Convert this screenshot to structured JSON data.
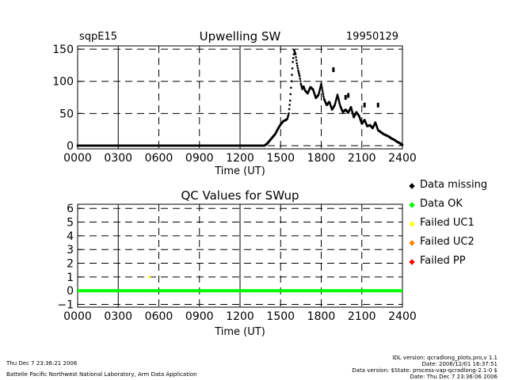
{
  "charts": {
    "top": {
      "site": "sqpE15",
      "title": "Upwelling SW",
      "date": "19950129",
      "xlabel": "Time (UT)"
    },
    "bottom": {
      "title": "QC Values for SWup",
      "xlabel": "Time (UT)"
    }
  },
  "legend": [
    {
      "label": "Data missing",
      "color": "#000000"
    },
    {
      "label": "Data OK",
      "color": "#00ff00"
    },
    {
      "label": "Failed UC1",
      "color": "#ffff00"
    },
    {
      "label": "Failed UC2",
      "color": "#ff8000"
    },
    {
      "label": "Failed PP",
      "color": "#ff0000"
    }
  ],
  "footer": {
    "timestamp": "Thu Dec  7 23:36:21 2006",
    "org": "Battelle Pacific Northwest National Laboratory, Arm Data Application",
    "idl": "IDL version: qcradlong_plots.pro,v 1.1",
    "date": "Date: 2006/12/01 16:37:51",
    "data_version": "Data version: $State: process-vap-qcradlong-2.1-0 $",
    "date2": "Date: Thu Dec  7 23:36:06 2006"
  },
  "chart_data": [
    {
      "type": "scatter",
      "title": "Upwelling SW",
      "xlabel": "Time (UT)",
      "ylabel": "",
      "xlim": [
        0,
        2400
      ],
      "ylim": [
        -5,
        155
      ],
      "x_ticks": [
        "0000",
        "0300",
        "0600",
        "0900",
        "1200",
        "1500",
        "1800",
        "2100",
        "2400"
      ],
      "y_ticks": [
        0,
        50,
        100,
        150
      ],
      "series": [
        {
          "name": "Upwelling SW",
          "color": "#000000",
          "x": [
            0,
            1380,
            1400,
            1420,
            1440,
            1460,
            1480,
            1500,
            1520,
            1540,
            1550,
            1560,
            1570,
            1580,
            1590,
            1600,
            1610,
            1620,
            1630,
            1640,
            1650,
            1660,
            1670,
            1680,
            1700,
            1720,
            1740,
            1760,
            1780,
            1800,
            1820,
            1840,
            1860,
            1880,
            1900,
            1920,
            1940,
            1960,
            1980,
            2000,
            2020,
            2040,
            2060,
            2080,
            2100,
            2120,
            2140,
            2160,
            2180,
            2200,
            2220,
            2240,
            2260,
            2280,
            2300,
            2320,
            2340,
            2360,
            2380,
            2400
          ],
          "y": [
            0,
            0,
            3,
            8,
            13,
            18,
            26,
            33,
            38,
            40,
            42,
            50,
            70,
            100,
            130,
            148,
            142,
            128,
            117,
            108,
            96,
            88,
            92,
            86,
            81,
            91,
            87,
            74,
            79,
            96,
            73,
            63,
            68,
            56,
            63,
            79,
            62,
            52,
            56,
            51,
            60,
            44,
            52,
            46,
            34,
            40,
            30,
            32,
            27,
            36,
            24,
            21,
            18,
            16,
            14,
            11,
            9,
            6,
            4,
            1
          ]
        },
        {
          "name": "Upwelling SW (outliers)",
          "color": "#000000",
          "x": [
            1890,
            1980,
            2000,
            2120,
            2220
          ],
          "y": [
            118,
            75,
            78,
            63,
            63
          ]
        }
      ]
    },
    {
      "type": "line",
      "title": "QC Values for SWup",
      "xlabel": "Time (UT)",
      "ylabel": "",
      "xlim": [
        0,
        2400
      ],
      "ylim": [
        -1.2,
        6.3
      ],
      "x_ticks": [
        "0000",
        "0300",
        "0600",
        "0900",
        "1200",
        "1500",
        "1800",
        "2100",
        "2400"
      ],
      "y_ticks": [
        -1,
        0,
        1,
        2,
        3,
        4,
        5,
        6
      ],
      "series": [
        {
          "name": "Data OK",
          "color": "#00ff00",
          "x": [
            0,
            2400
          ],
          "y": [
            0,
            0
          ]
        },
        {
          "name": "Failed UC1",
          "color": "#ffff00",
          "x": [
            530
          ],
          "y": [
            1
          ]
        }
      ]
    }
  ]
}
